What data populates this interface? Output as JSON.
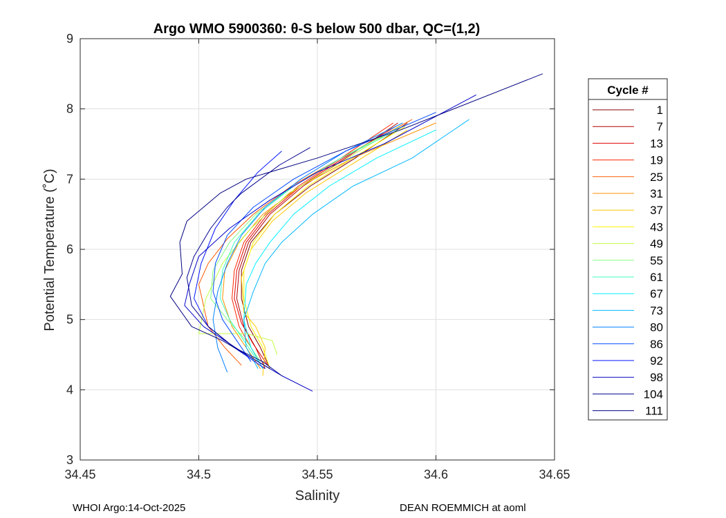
{
  "chart_data": {
    "type": "line",
    "title": "Argo WMO 5900360: θ-S below 500 dbar,  QC=(1,2)",
    "xlabel": "Salinity",
    "ylabel": "Potential Temperature (˚C)",
    "xlim": [
      34.45,
      34.65
    ],
    "ylim": [
      3,
      9
    ],
    "xticks": [
      34.45,
      34.5,
      34.55,
      34.6,
      34.65
    ],
    "xtick_labels": [
      "34.45",
      "34.5",
      "34.55",
      "34.6",
      "34.65"
    ],
    "yticks": [
      3,
      4,
      5,
      6,
      7,
      8,
      9
    ],
    "ytick_labels": [
      "3",
      "4",
      "5",
      "6",
      "7",
      "8",
      "9"
    ],
    "grid": true,
    "legend_title": "Cycle #",
    "legend_position": "right-outside",
    "legend_entries": [
      {
        "label": "1",
        "color": "#800000"
      },
      {
        "label": "7",
        "color": "#b30000"
      },
      {
        "label": "13",
        "color": "#e00000"
      },
      {
        "label": "19",
        "color": "#ff2400"
      },
      {
        "label": "25",
        "color": "#ff5a00"
      },
      {
        "label": "31",
        "color": "#ff9000"
      },
      {
        "label": "37",
        "color": "#ffc800"
      },
      {
        "label": "43",
        "color": "#fff200"
      },
      {
        "label": "49",
        "color": "#c0ff3f"
      },
      {
        "label": "55",
        "color": "#80ff7f"
      },
      {
        "label": "61",
        "color": "#40ffbf"
      },
      {
        "label": "67",
        "color": "#00f0ff"
      },
      {
        "label": "73",
        "color": "#00b8ff"
      },
      {
        "label": "80",
        "color": "#0080ff"
      },
      {
        "label": "86",
        "color": "#0048ff"
      },
      {
        "label": "92",
        "color": "#0010ff"
      },
      {
        "label": "98",
        "color": "#0000c8"
      },
      {
        "label": "104",
        "color": "#00008f"
      },
      {
        "label": "111",
        "color": "#000080"
      }
    ],
    "series": [
      {
        "name": "1",
        "color": "#800000",
        "salinity": [
          34.53,
          34.526,
          34.521,
          34.518,
          34.518,
          34.522,
          34.532,
          34.547,
          34.566,
          34.588
        ],
        "theta": [
          4.3,
          4.6,
          4.9,
          5.3,
          5.7,
          6.1,
          6.5,
          6.9,
          7.3,
          7.8
        ]
      },
      {
        "name": "7",
        "color": "#b30000",
        "salinity": [
          34.528,
          34.524,
          34.519,
          34.516,
          34.517,
          34.521,
          34.53,
          34.544,
          34.562,
          34.584
        ],
        "theta": [
          4.3,
          4.6,
          4.9,
          5.3,
          5.7,
          6.1,
          6.5,
          6.9,
          7.3,
          7.8
        ]
      },
      {
        "name": "13",
        "color": "#e00000",
        "salinity": [
          34.529,
          34.523,
          34.518,
          34.515,
          34.516,
          34.52,
          34.529,
          34.543,
          34.561,
          34.583
        ],
        "theta": [
          4.35,
          4.65,
          4.95,
          5.3,
          5.7,
          6.1,
          6.5,
          6.9,
          7.3,
          7.75
        ]
      },
      {
        "name": "19",
        "color": "#ff2400",
        "salinity": [
          34.527,
          34.522,
          34.517,
          34.514,
          34.515,
          34.519,
          34.528,
          34.542,
          34.56,
          34.582
        ],
        "theta": [
          4.3,
          4.6,
          4.9,
          5.3,
          5.7,
          6.1,
          6.5,
          6.9,
          7.3,
          7.8
        ]
      },
      {
        "name": "25",
        "color": "#ff5a00",
        "salinity": [
          34.518,
          34.511,
          34.504,
          34.5,
          34.504,
          34.512,
          34.523,
          34.539,
          34.56,
          34.59
        ],
        "theta": [
          4.35,
          4.6,
          4.9,
          5.5,
          5.8,
          6.15,
          6.5,
          6.9,
          7.3,
          7.85
        ]
      },
      {
        "name": "31",
        "color": "#ff9000",
        "salinity": [
          34.526,
          34.52,
          34.514,
          34.51,
          34.511,
          34.517,
          34.527,
          34.543,
          34.565,
          34.6
        ],
        "theta": [
          4.3,
          4.6,
          4.9,
          5.3,
          5.7,
          6.1,
          6.5,
          6.9,
          7.3,
          7.8
        ]
      },
      {
        "name": "37",
        "color": "#ffc800",
        "salinity": [
          34.527,
          34.528,
          34.524,
          34.519,
          34.518,
          34.522,
          34.531,
          34.545,
          34.564,
          34.588
        ],
        "theta": [
          4.2,
          4.6,
          4.9,
          5.1,
          5.6,
          6.0,
          6.4,
          6.8,
          7.2,
          7.7
        ]
      },
      {
        "name": "43",
        "color": "#fff200",
        "salinity": [
          34.53,
          34.527,
          34.522,
          34.519,
          34.519,
          34.523,
          34.532,
          34.546,
          34.565,
          34.587
        ],
        "theta": [
          4.3,
          4.6,
          4.9,
          5.3,
          5.7,
          6.1,
          6.5,
          6.9,
          7.3,
          7.75
        ]
      },
      {
        "name": "49",
        "color": "#c0ff3f",
        "salinity": [
          34.533,
          34.531,
          34.52,
          34.5,
          34.503,
          34.51,
          34.522,
          34.538,
          34.558,
          34.582
        ],
        "theta": [
          4.5,
          4.7,
          4.8,
          4.8,
          5.3,
          5.8,
          6.3,
          6.8,
          7.2,
          7.7
        ]
      },
      {
        "name": "55",
        "color": "#80ff7f",
        "salinity": [
          34.526,
          34.52,
          34.512,
          34.505,
          34.506,
          34.513,
          34.524,
          34.54,
          34.56,
          34.585
        ],
        "theta": [
          4.4,
          4.7,
          5.0,
          5.3,
          5.7,
          6.1,
          6.5,
          6.9,
          7.3,
          7.75
        ]
      },
      {
        "name": "61",
        "color": "#40ffbf",
        "salinity": [
          34.525,
          34.519,
          34.513,
          34.509,
          34.51,
          34.515,
          34.525,
          34.54,
          34.56,
          34.584
        ],
        "theta": [
          4.4,
          4.7,
          5.0,
          5.3,
          5.7,
          6.1,
          6.5,
          6.9,
          7.3,
          7.7
        ]
      },
      {
        "name": "67",
        "color": "#00f0ff",
        "salinity": [
          34.527,
          34.522,
          34.519,
          34.52,
          34.524,
          34.53,
          34.54,
          34.555,
          34.575,
          34.6
        ],
        "theta": [
          4.3,
          4.6,
          5.0,
          5.5,
          5.8,
          6.1,
          6.5,
          6.9,
          7.3,
          7.7
        ]
      },
      {
        "name": "73",
        "color": "#00b8ff",
        "salinity": [
          34.525,
          34.52,
          34.519,
          34.523,
          34.528,
          34.535,
          34.548,
          34.565,
          34.59,
          34.614
        ],
        "theta": [
          4.3,
          4.6,
          5.0,
          5.4,
          5.8,
          6.1,
          6.5,
          6.9,
          7.3,
          7.85
        ]
      },
      {
        "name": "80",
        "color": "#0080ff",
        "salinity": [
          34.512,
          34.508,
          34.506,
          34.508,
          34.512,
          34.518,
          34.528,
          34.543,
          34.562,
          34.586
        ],
        "theta": [
          4.25,
          4.6,
          5.0,
          5.4,
          5.8,
          6.2,
          6.6,
          7.0,
          7.4,
          7.8
        ]
      },
      {
        "name": "86",
        "color": "#0048ff",
        "salinity": [
          34.522,
          34.516,
          34.51,
          34.506,
          34.507,
          34.512,
          34.523,
          34.54,
          34.562,
          34.6
        ],
        "theta": [
          4.4,
          4.7,
          5.0,
          5.4,
          5.8,
          6.2,
          6.6,
          7.0,
          7.4,
          7.95
        ]
      },
      {
        "name": "92",
        "color": "#0010ff",
        "salinity": [
          34.528,
          34.515,
          34.504,
          34.498,
          34.501,
          34.507,
          34.515,
          34.525,
          34.535
        ],
        "theta": [
          4.3,
          4.6,
          4.9,
          5.3,
          5.8,
          6.3,
          6.7,
          7.1,
          7.4
        ]
      },
      {
        "name": "98",
        "color": "#0000c8",
        "salinity": [
          34.548,
          34.535,
          34.52,
          34.502,
          34.494,
          34.496,
          34.5,
          34.513,
          34.53,
          34.55,
          34.578,
          34.617
        ],
        "theta": [
          3.98,
          4.2,
          4.5,
          4.9,
          5.2,
          5.5,
          5.9,
          6.3,
          6.7,
          7.1,
          7.5,
          8.2
        ]
      },
      {
        "name": "104",
        "color": "#00008f",
        "salinity": [
          34.535,
          34.527,
          34.515,
          34.504,
          34.497,
          34.495,
          34.498,
          34.505,
          34.512,
          34.518,
          34.534,
          34.547
        ],
        "theta": [
          4.2,
          4.4,
          4.6,
          4.9,
          5.2,
          5.6,
          5.9,
          6.3,
          6.6,
          6.8,
          7.2,
          7.45
        ]
      },
      {
        "name": "111",
        "color": "#000080",
        "salinity": [
          34.53,
          34.52,
          34.51,
          34.497,
          34.488,
          34.493,
          34.492,
          34.495,
          34.509,
          34.52,
          34.55,
          34.585,
          34.645
        ],
        "theta": [
          4.3,
          4.5,
          4.7,
          4.9,
          5.33,
          5.65,
          6.1,
          6.4,
          6.8,
          7.0,
          7.3,
          7.7,
          8.5
        ]
      }
    ]
  },
  "footer": {
    "left": "WHOI Argo:14-Oct-2025",
    "right": "DEAN ROEMMICH at aoml"
  }
}
